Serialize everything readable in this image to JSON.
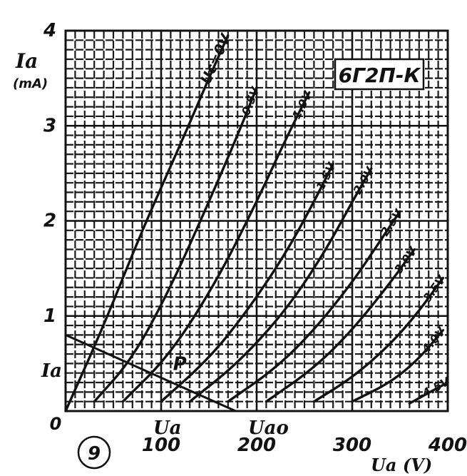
{
  "chart_data": {
    "type": "line",
    "tube_type": "6Г2П-К",
    "xlabel": "Ua (V)",
    "ylabel": "Ia",
    "ylabel_unit": "(mA)",
    "xlim": [
      0,
      400
    ],
    "ylim": [
      0,
      4
    ],
    "x_ticks": [
      "0",
      "100",
      "200",
      "300",
      "400"
    ],
    "y_ticks": [
      "1",
      "2",
      "3",
      "4"
    ],
    "grid": "on",
    "figure_number": "9",
    "series": [
      {
        "name": "Uc=0V",
        "points": [
          [
            0,
            0
          ],
          [
            40,
            0.9
          ],
          [
            80,
            1.9
          ],
          [
            120,
            2.8
          ],
          [
            150,
            3.5
          ],
          [
            170,
            3.95
          ]
        ]
      },
      {
        "name": "-0.5V",
        "points": [
          [
            30,
            0.1
          ],
          [
            70,
            0.55
          ],
          [
            110,
            1.3
          ],
          [
            150,
            2.2
          ],
          [
            180,
            2.9
          ],
          [
            200,
            3.4
          ]
        ]
      },
      {
        "name": "-1.0V",
        "points": [
          [
            60,
            0.1
          ],
          [
            110,
            0.6
          ],
          [
            160,
            1.4
          ],
          [
            200,
            2.2
          ],
          [
            230,
            2.85
          ],
          [
            255,
            3.35
          ]
        ]
      },
      {
        "name": "-1.5V",
        "points": [
          [
            100,
            0.1
          ],
          [
            150,
            0.55
          ],
          [
            190,
            1.05
          ],
          [
            230,
            1.65
          ],
          [
            260,
            2.2
          ],
          [
            280,
            2.6
          ]
        ]
      },
      {
        "name": "-2.0V",
        "points": [
          [
            130,
            0.1
          ],
          [
            180,
            0.5
          ],
          [
            230,
            1.05
          ],
          [
            270,
            1.65
          ],
          [
            300,
            2.2
          ],
          [
            320,
            2.55
          ]
        ]
      },
      {
        "name": "-2.5V",
        "points": [
          [
            170,
            0.1
          ],
          [
            220,
            0.45
          ],
          [
            260,
            0.85
          ],
          [
            300,
            1.35
          ],
          [
            330,
            1.8
          ],
          [
            350,
            2.1
          ]
        ]
      },
      {
        "name": "-3.0V",
        "points": [
          [
            210,
            0.1
          ],
          [
            260,
            0.45
          ],
          [
            300,
            0.85
          ],
          [
            340,
            1.35
          ],
          [
            365,
            1.7
          ]
        ]
      },
      {
        "name": "-3.5V",
        "points": [
          [
            260,
            0.1
          ],
          [
            300,
            0.35
          ],
          [
            340,
            0.7
          ],
          [
            370,
            1.05
          ],
          [
            395,
            1.4
          ]
        ]
      },
      {
        "name": "-4.0V",
        "points": [
          [
            300,
            0.1
          ],
          [
            340,
            0.3
          ],
          [
            370,
            0.55
          ],
          [
            395,
            0.85
          ]
        ]
      },
      {
        "name": "-4.5V",
        "points": [
          [
            360,
            0.08
          ],
          [
            385,
            0.22
          ],
          [
            400,
            0.3
          ]
        ]
      }
    ],
    "load_line": {
      "points": [
        [
          0,
          0.8
        ],
        [
          178,
          0
        ]
      ]
    },
    "operating_point": {
      "label": "P",
      "x": 108,
      "y": 0.4
    },
    "annotations": {
      "ia_point": "Ia",
      "ua_point": "Ua",
      "uao_point": "Uao"
    }
  }
}
